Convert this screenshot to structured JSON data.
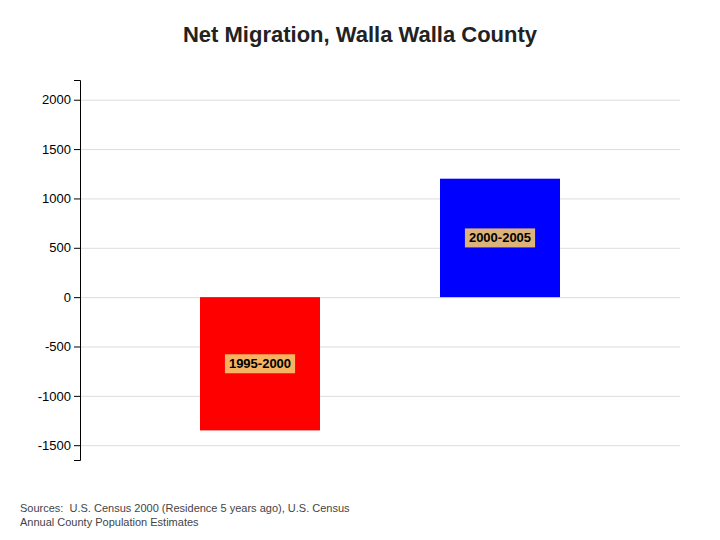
{
  "chart_data": {
    "type": "bar",
    "title": "Net Migration, Walla Walla County",
    "categories": [
      "1995-2000",
      "2000-2005"
    ],
    "values": [
      -1350,
      1200
    ],
    "colors": [
      "#FF0000",
      "#0000FF"
    ],
    "ylim": [
      -1650,
      2200
    ],
    "yticks": [
      -1500,
      -1000,
      -500,
      0,
      500,
      1000,
      1500,
      2000
    ],
    "grid": true,
    "tick_labels": "y",
    "annotations": [
      "Sources:  U.S. Census 2000 (Residence 5 years ago), U.S. Census\nAnnual County Population Estimates"
    ]
  }
}
